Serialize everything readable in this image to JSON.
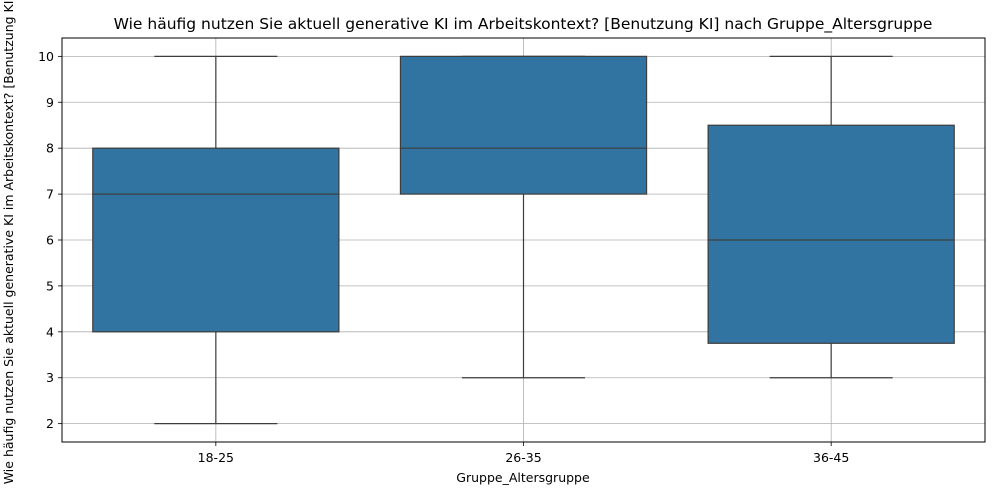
{
  "chart_data": {
    "type": "box",
    "title": "Wie häufig nutzen Sie aktuell generative KI im Arbeitskontext? [Benutzung KI] nach Gruppe_Altersgruppe",
    "xlabel": "Gruppe_Altersgruppe",
    "ylabel": "Wie häufig nutzen Sie aktuell generative KI im Arbeitskontext? [Benutzung KI]",
    "categories": [
      "18-25",
      "26-35",
      "36-45"
    ],
    "boxes": [
      {
        "category": "18-25",
        "whisker_low": 2,
        "q1": 4,
        "median": 7,
        "q3": 8,
        "whisker_high": 10
      },
      {
        "category": "26-35",
        "whisker_low": 3,
        "q1": 7,
        "median": 8,
        "q3": 10,
        "whisker_high": 10
      },
      {
        "category": "36-45",
        "whisker_low": 3,
        "q1": 3.75,
        "median": 6,
        "q3": 8.5,
        "whisker_high": 10
      }
    ],
    "yticks": [
      2,
      3,
      4,
      5,
      6,
      7,
      8,
      9,
      10
    ],
    "ylim": [
      1.6,
      10.4
    ],
    "grid": true,
    "color": "#3274a1",
    "line_color": "#3d3d3d"
  }
}
